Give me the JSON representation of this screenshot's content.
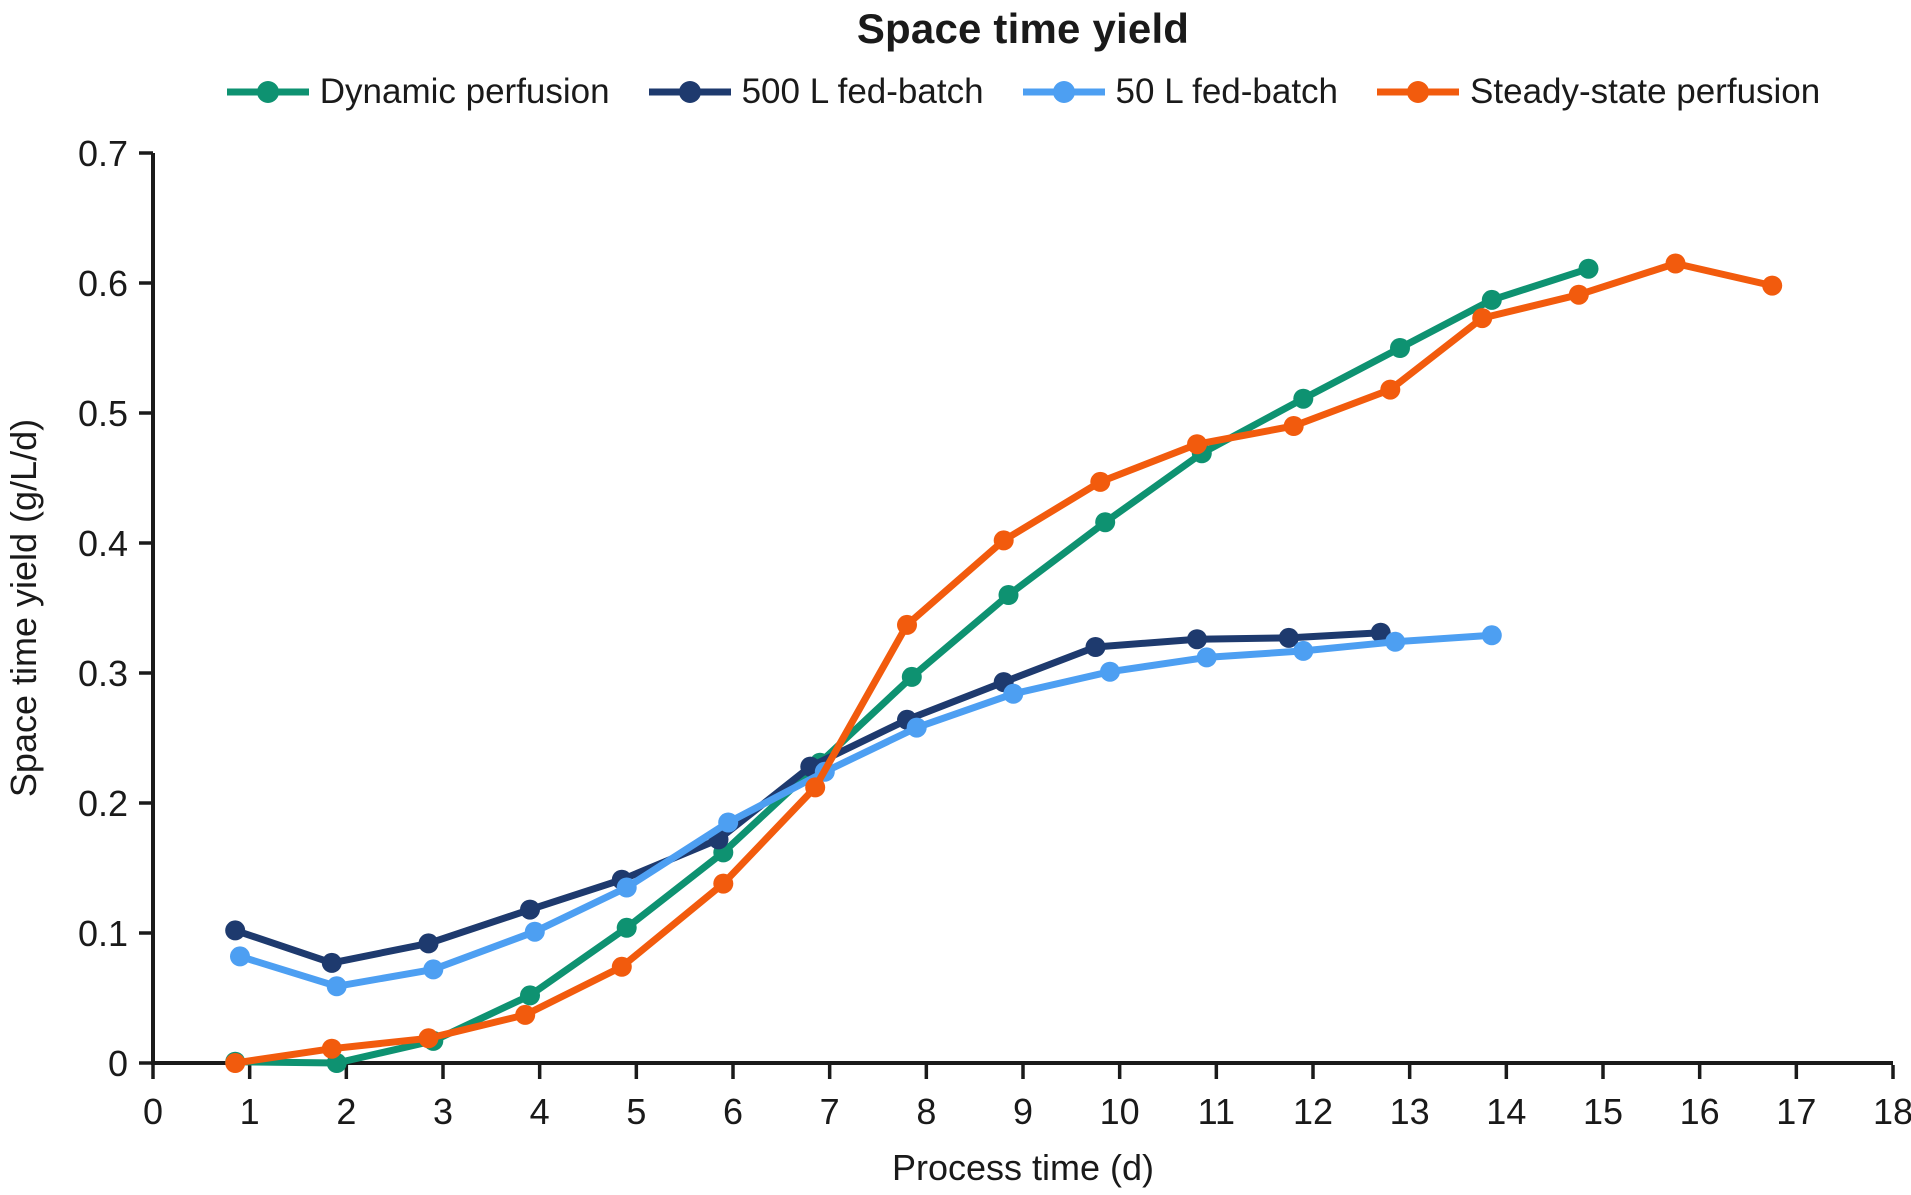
{
  "page": {
    "background": "#ffffff",
    "text_color": "#1a1a1a"
  },
  "chart_data": {
    "type": "line",
    "title": "Space time yield",
    "xlabel": "Process time (d)",
    "ylabel": "Space time yield (g/L/d)",
    "xlim": [
      0,
      18
    ],
    "ylim": [
      0,
      0.7
    ],
    "xticks": [
      0,
      1,
      2,
      3,
      4,
      5,
      6,
      7,
      8,
      9,
      10,
      11,
      12,
      13,
      14,
      15,
      16,
      17,
      18
    ],
    "xtick_labels": [
      "0",
      "1",
      "2",
      "3",
      "4",
      "5",
      "6",
      "7",
      "8",
      "9",
      "10",
      "11",
      "12",
      "13",
      "14",
      "15",
      "16",
      "17",
      "18"
    ],
    "yticks": [
      0,
      0.1,
      0.2,
      0.3,
      0.4,
      0.5,
      0.6,
      0.7
    ],
    "ytick_labels": [
      "0",
      "0.1",
      "0.2",
      "0.3",
      "0.4",
      "0.5",
      "0.6",
      "0.7"
    ],
    "grid": false,
    "legend_position": "top-center",
    "axis_color": "#1a1a1a",
    "marker_radius": 10,
    "line_width": 7,
    "series": [
      {
        "name": "Dynamic perfusion",
        "color": "#0E9271",
        "points": [
          [
            0.85,
            0.001
          ],
          [
            1.9,
            0.0
          ],
          [
            2.9,
            0.017
          ],
          [
            3.9,
            0.052
          ],
          [
            4.9,
            0.104
          ],
          [
            5.9,
            0.162
          ],
          [
            6.9,
            0.231
          ],
          [
            7.85,
            0.297
          ],
          [
            8.85,
            0.36
          ],
          [
            9.85,
            0.416
          ],
          [
            10.85,
            0.469
          ],
          [
            11.9,
            0.511
          ],
          [
            12.9,
            0.55
          ],
          [
            13.85,
            0.587
          ],
          [
            14.85,
            0.611
          ]
        ]
      },
      {
        "name": "500 L fed-batch",
        "color": "#1E3A6E",
        "points": [
          [
            0.85,
            0.102
          ],
          [
            1.85,
            0.077
          ],
          [
            2.85,
            0.092
          ],
          [
            3.9,
            0.118
          ],
          [
            4.85,
            0.141
          ],
          [
            5.85,
            0.172
          ],
          [
            6.8,
            0.228
          ],
          [
            7.8,
            0.264
          ],
          [
            8.8,
            0.293
          ],
          [
            9.75,
            0.32
          ],
          [
            10.8,
            0.326
          ],
          [
            11.75,
            0.327
          ],
          [
            12.7,
            0.331
          ]
        ]
      },
      {
        "name": "50 L fed-batch",
        "color": "#4D9FF2",
        "points": [
          [
            0.9,
            0.082
          ],
          [
            1.9,
            0.059
          ],
          [
            2.9,
            0.072
          ],
          [
            3.95,
            0.101
          ],
          [
            4.9,
            0.135
          ],
          [
            5.95,
            0.185
          ],
          [
            6.95,
            0.224
          ],
          [
            7.9,
            0.258
          ],
          [
            8.9,
            0.284
          ],
          [
            9.9,
            0.301
          ],
          [
            10.9,
            0.312
          ],
          [
            11.9,
            0.317
          ],
          [
            12.85,
            0.324
          ],
          [
            13.85,
            0.329
          ]
        ]
      },
      {
        "name": "Steady-state perfusion",
        "color": "#F25B0D",
        "points": [
          [
            0.85,
            0.0
          ],
          [
            1.85,
            0.011
          ],
          [
            2.85,
            0.019
          ],
          [
            3.85,
            0.037
          ],
          [
            4.85,
            0.074
          ],
          [
            5.9,
            0.138
          ],
          [
            6.85,
            0.212
          ],
          [
            7.8,
            0.337
          ],
          [
            8.8,
            0.402
          ],
          [
            9.8,
            0.447
          ],
          [
            10.8,
            0.476
          ],
          [
            11.8,
            0.49
          ],
          [
            12.8,
            0.518
          ],
          [
            13.75,
            0.573
          ],
          [
            14.75,
            0.591
          ],
          [
            15.75,
            0.615
          ],
          [
            16.75,
            0.598
          ]
        ]
      }
    ]
  }
}
